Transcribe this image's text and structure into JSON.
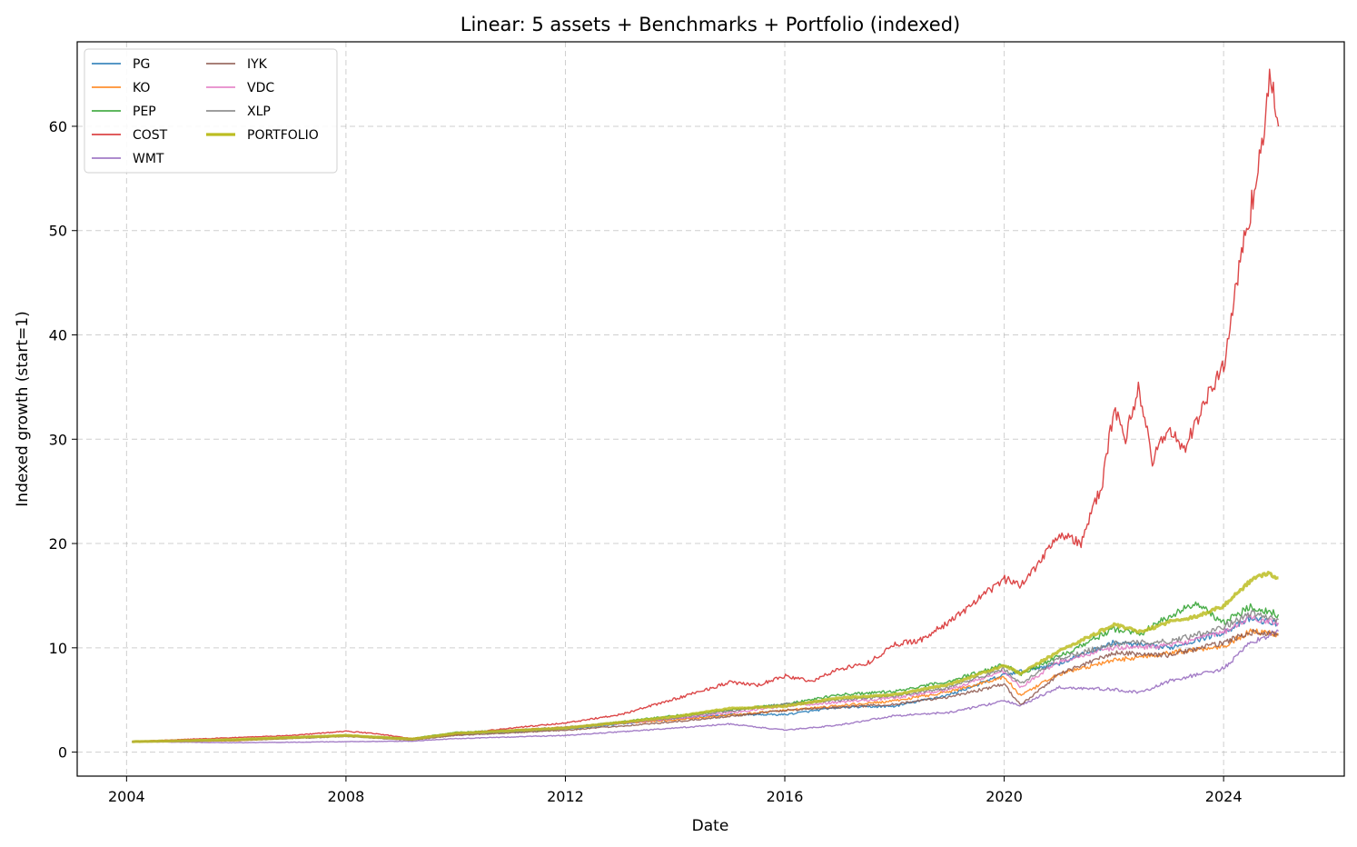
{
  "chart_data": {
    "type": "line",
    "title": "Linear: 5 assets + Benchmarks + Portfolio (indexed)",
    "xlabel": "Date",
    "ylabel": "Indexed growth (start=1)",
    "xlim": [
      2003.1,
      2026.2
    ],
    "ylim": [
      -2.3,
      68.1
    ],
    "x_ticks": [
      2004,
      2008,
      2012,
      2016,
      2020,
      2024
    ],
    "y_ticks": [
      0,
      10,
      20,
      30,
      40,
      50,
      60
    ],
    "grid": true,
    "legend_position": "top-left",
    "legend_columns": 2,
    "series": [
      {
        "name": "PG",
        "color": "#1f77b4",
        "width": 1.4,
        "x": [
          2004.1,
          2006,
          2008,
          2009.2,
          2010,
          2012,
          2014,
          2015,
          2016,
          2017,
          2018,
          2019,
          2020,
          2021,
          2022,
          2023,
          2024,
          2024.5,
          2025.0
        ],
        "y": [
          1.0,
          1.15,
          1.6,
          1.2,
          1.7,
          2.2,
          3.2,
          3.6,
          3.6,
          4.3,
          4.4,
          5.5,
          7.4,
          8.5,
          10.5,
          10.0,
          11.5,
          12.8,
          12.3
        ]
      },
      {
        "name": "KO",
        "color": "#ff7f0e",
        "width": 1.4,
        "x": [
          2004.1,
          2006,
          2008,
          2009.2,
          2010,
          2012,
          2014,
          2016,
          2018,
          2019,
          2020,
          2020.3,
          2021,
          2022,
          2023,
          2024,
          2024.5,
          2025.0
        ],
        "y": [
          1.0,
          1.1,
          1.6,
          1.25,
          1.8,
          2.4,
          3.1,
          4.0,
          4.9,
          5.8,
          7.2,
          5.4,
          7.5,
          8.8,
          9.5,
          10.2,
          11.6,
          11.3
        ]
      },
      {
        "name": "PEP",
        "color": "#2ca02c",
        "width": 1.4,
        "x": [
          2004.1,
          2006,
          2008,
          2009.2,
          2010,
          2012,
          2014,
          2016,
          2017,
          2018,
          2019,
          2020,
          2020.3,
          2021,
          2022,
          2022.5,
          2023,
          2023.5,
          2024,
          2024.5,
          2025.0
        ],
        "y": [
          1.0,
          1.2,
          1.6,
          1.3,
          1.9,
          2.3,
          3.5,
          4.6,
          5.5,
          5.8,
          6.8,
          8.4,
          7.5,
          9.2,
          11.8,
          11.4,
          13.0,
          14.3,
          12.4,
          14.0,
          13.2
        ]
      },
      {
        "name": "COST",
        "color": "#d62728",
        "width": 1.4,
        "x": [
          2004.1,
          2005,
          2006,
          2007,
          2008,
          2008.5,
          2009.2,
          2010,
          2011,
          2012,
          2013,
          2014,
          2015,
          2015.5,
          2016,
          2016.5,
          2017,
          2017.5,
          2018,
          2018.5,
          2019,
          2019.5,
          2020,
          2020.3,
          2020.6,
          2021,
          2021.4,
          2021.8,
          2022,
          2022.2,
          2022.45,
          2022.7,
          2023,
          2023.3,
          2023.6,
          2024,
          2024.3,
          2024.6,
          2024.85,
          2025.0
        ],
        "y": [
          1.0,
          1.2,
          1.4,
          1.6,
          2.0,
          1.8,
          1.3,
          1.7,
          2.3,
          2.8,
          3.6,
          5.1,
          6.7,
          6.4,
          7.3,
          6.8,
          8.0,
          8.5,
          10.3,
          10.8,
          12.5,
          14.5,
          16.6,
          16.0,
          18.0,
          21.0,
          20.0,
          26.0,
          33.0,
          30.0,
          35.0,
          28.0,
          31.0,
          29.0,
          33.0,
          37.0,
          47.0,
          55.0,
          64.5,
          60.0
        ]
      },
      {
        "name": "WMT",
        "color": "#9467bd",
        "width": 1.4,
        "x": [
          2004.1,
          2006,
          2008,
          2009.2,
          2010,
          2012,
          2014,
          2015,
          2016,
          2017,
          2018,
          2019,
          2020,
          2020.3,
          2021,
          2022,
          2022.5,
          2023,
          2024,
          2024.5,
          2025.0
        ],
        "y": [
          1.0,
          0.9,
          1.0,
          1.05,
          1.3,
          1.6,
          2.3,
          2.7,
          2.1,
          2.6,
          3.5,
          3.8,
          4.9,
          4.5,
          6.2,
          6.0,
          5.7,
          6.8,
          8.0,
          10.5,
          11.6
        ]
      },
      {
        "name": "IYK",
        "color": "#8c564b",
        "width": 1.4,
        "x": [
          2004.1,
          2006,
          2008,
          2009.2,
          2010,
          2012,
          2014,
          2016,
          2018,
          2019,
          2020,
          2020.3,
          2021,
          2022,
          2023,
          2024,
          2024.5,
          2025.0
        ],
        "y": [
          1.0,
          1.1,
          1.5,
          1.15,
          1.6,
          2.1,
          2.9,
          4.0,
          4.6,
          5.3,
          6.5,
          4.5,
          7.5,
          9.5,
          9.3,
          10.5,
          11.5,
          11.2
        ]
      },
      {
        "name": "VDC",
        "color": "#e377c2",
        "width": 1.4,
        "x": [
          2004.1,
          2006,
          2008,
          2009.2,
          2010,
          2012,
          2014,
          2016,
          2018,
          2019,
          2020,
          2020.3,
          2021,
          2022,
          2023,
          2024,
          2024.5,
          2025.0
        ],
        "y": [
          1.0,
          1.15,
          1.6,
          1.2,
          1.8,
          2.3,
          3.2,
          4.4,
          5.2,
          6.0,
          7.8,
          6.2,
          8.7,
          10.0,
          10.2,
          11.5,
          12.9,
          12.4
        ]
      },
      {
        "name": "XLP",
        "color": "#7f7f7f",
        "width": 1.4,
        "x": [
          2004.1,
          2006,
          2008,
          2009.2,
          2010,
          2012,
          2014,
          2016,
          2018,
          2019,
          2020,
          2020.3,
          2021,
          2022,
          2023,
          2024,
          2024.5,
          2025.0
        ],
        "y": [
          1.0,
          1.15,
          1.6,
          1.2,
          1.8,
          2.4,
          3.3,
          4.6,
          5.4,
          6.2,
          8.0,
          6.5,
          9.0,
          10.4,
          10.6,
          12.0,
          13.3,
          12.7
        ]
      },
      {
        "name": "PORTFOLIO",
        "color": "#bcbd22",
        "width": 3.2,
        "x": [
          2004.1,
          2006,
          2008,
          2009.2,
          2010,
          2012,
          2014,
          2015,
          2016,
          2017,
          2018,
          2019,
          2020,
          2020.3,
          2021,
          2022,
          2022.5,
          2023,
          2023.5,
          2024,
          2024.5,
          2024.8,
          2025.0
        ],
        "y": [
          1.0,
          1.2,
          1.6,
          1.25,
          1.8,
          2.3,
          3.4,
          4.2,
          4.4,
          5.2,
          5.5,
          6.5,
          8.3,
          7.5,
          9.7,
          12.2,
          11.5,
          12.5,
          13.0,
          14.0,
          16.5,
          17.2,
          16.7
        ]
      }
    ]
  }
}
